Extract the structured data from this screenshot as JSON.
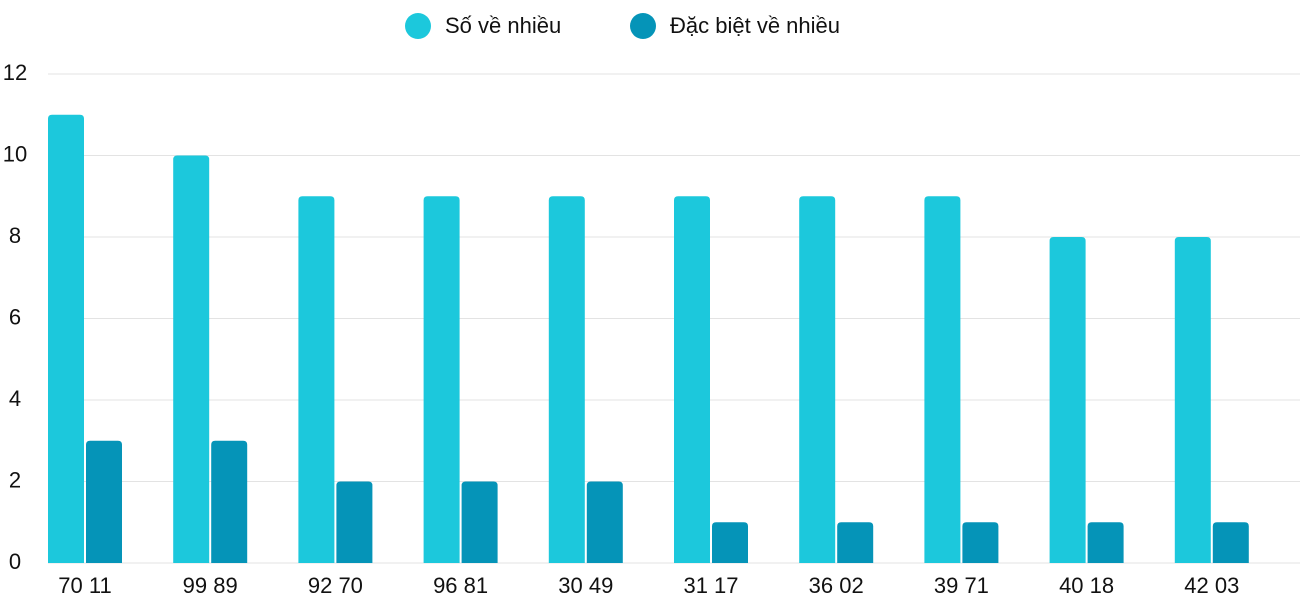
{
  "chart_data": {
    "type": "bar",
    "categories": [
      "70 11",
      "99 89",
      "92 70",
      "96 81",
      "30 49",
      "31 17",
      "36 02",
      "39 71",
      "40 18",
      "42 03"
    ],
    "series": [
      {
        "name": "Số về nhiều",
        "color": "#1cc8dc",
        "values": [
          11,
          10,
          9,
          9,
          9,
          9,
          9,
          9,
          8,
          8
        ]
      },
      {
        "name": "Đặc biệt về nhiều",
        "color": "#0594b8",
        "values": [
          3,
          3,
          2,
          2,
          2,
          1,
          1,
          1,
          1,
          1
        ]
      }
    ],
    "ylim": [
      0,
      12
    ],
    "yticks": [
      0,
      2,
      4,
      6,
      8,
      10,
      12
    ],
    "grid": true,
    "legend": "top"
  }
}
